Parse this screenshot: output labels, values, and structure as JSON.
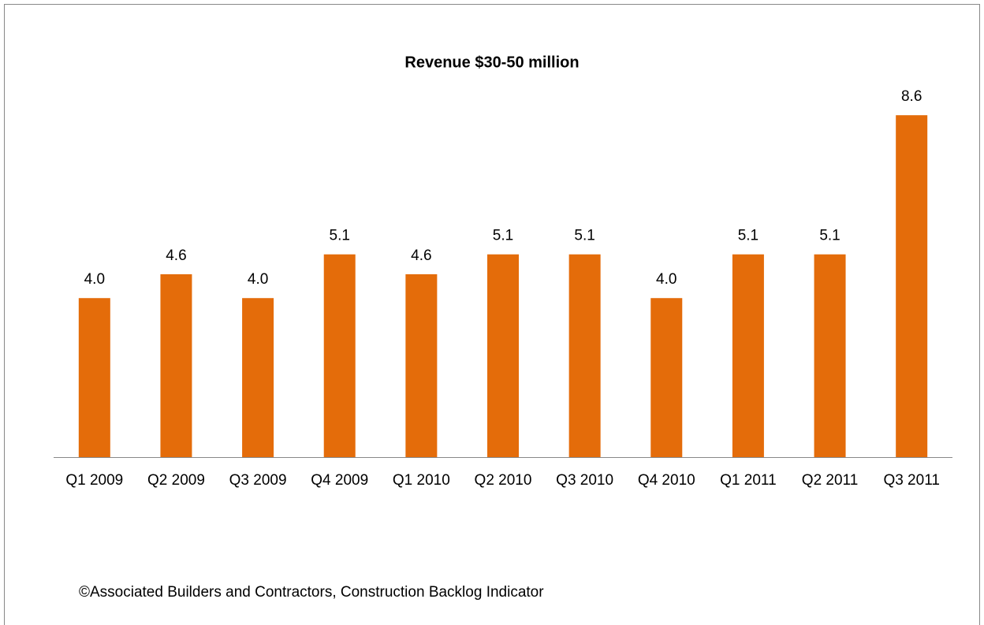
{
  "chart_data": {
    "type": "bar",
    "title": "Revenue $30-50 million",
    "categories": [
      "Q1 2009",
      "Q2 2009",
      "Q3 2009",
      "Q4 2009",
      "Q1 2010",
      "Q2 2010",
      "Q3 2010",
      "Q4 2010",
      "Q1 2011",
      "Q2 2011",
      "Q3 2011"
    ],
    "values": [
      4.0,
      4.6,
      4.0,
      5.1,
      4.6,
      5.1,
      5.1,
      4.0,
      5.1,
      5.1,
      8.6
    ],
    "value_labels": [
      "4.0",
      "4.6",
      "4.0",
      "5.1",
      "4.6",
      "5.1",
      "5.1",
      "4.0",
      "5.1",
      "5.1",
      "8.6"
    ],
    "color": "#e46c0a",
    "ylim": [
      0,
      9
    ],
    "source": "©Associated Builders and Contractors, Construction Backlog Indicator"
  }
}
